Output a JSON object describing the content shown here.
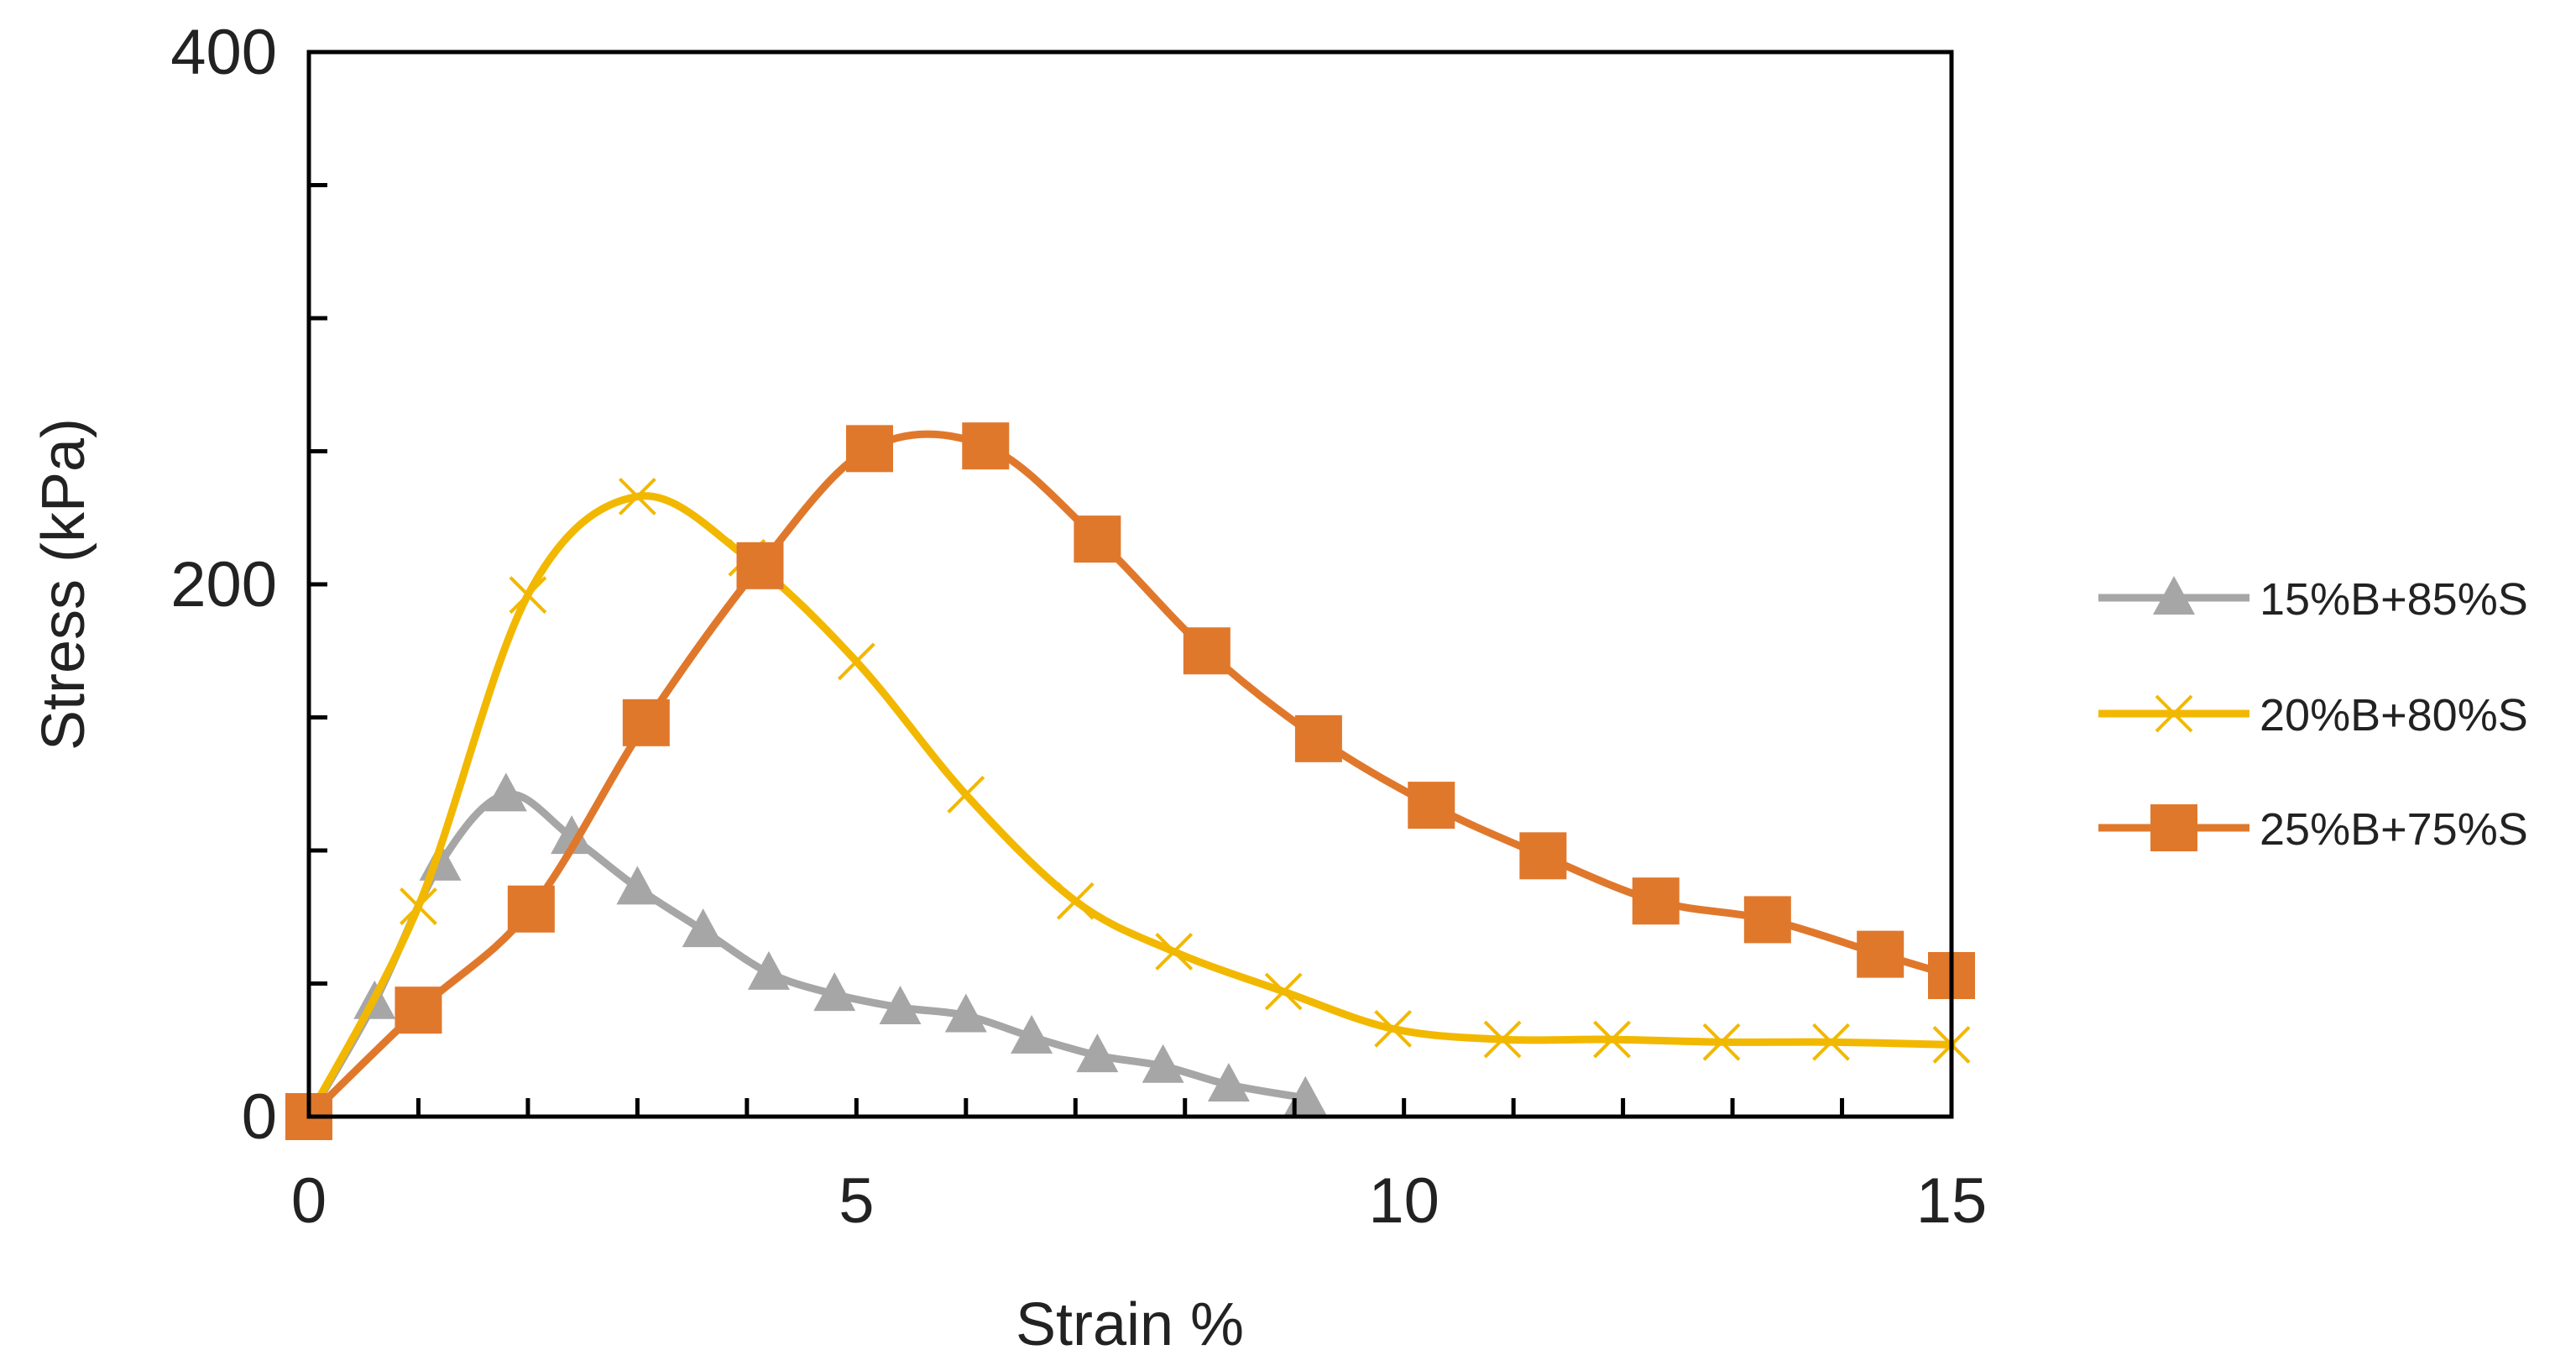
{
  "chart_data": {
    "type": "line",
    "title": "",
    "xlabel": "Strain %",
    "ylabel": "Stress  (kPa)",
    "xlim": [
      0,
      15
    ],
    "ylim": [
      0,
      400
    ],
    "xticks": [
      0,
      5,
      10,
      15
    ],
    "xtick_labels": [
      "0",
      "5",
      "10",
      "15"
    ],
    "yticks": [
      0,
      200,
      400
    ],
    "ytick_labels": [
      "0",
      "200",
      "400"
    ],
    "y_minor_step": 50,
    "x_minor_step": 1,
    "grid": false,
    "legend_position": "right",
    "series": [
      {
        "name": "15%B+85%S",
        "color": "#a6a6a6",
        "marker": "triangle",
        "x": [
          0,
          0.6,
          1.2,
          1.8,
          2.4,
          3.0,
          3.6,
          4.2,
          4.8,
          5.4,
          6.0,
          6.6,
          7.2,
          7.8,
          8.4,
          9.1
        ],
        "y": [
          0,
          43,
          95,
          121,
          105,
          86,
          70,
          54,
          46,
          41,
          38,
          30,
          23,
          19,
          12,
          7
        ]
      },
      {
        "name": "20%B+80%S",
        "color": "#f2b800",
        "marker": "x",
        "x": [
          0,
          1.0,
          2.0,
          3.0,
          4.0,
          5.0,
          6.0,
          7.0,
          7.9,
          8.9,
          9.9,
          10.9,
          11.9,
          12.9,
          13.9,
          15.0
        ],
        "y": [
          0,
          79,
          196,
          233,
          210,
          171,
          121,
          81,
          62,
          47,
          33,
          29,
          29,
          28,
          28,
          27
        ]
      },
      {
        "name": "25%B+75%S",
        "color": "#e0782c",
        "marker": "square",
        "x": [
          0,
          1.0,
          2.03,
          3.08,
          4.12,
          5.12,
          6.18,
          7.2,
          8.2,
          9.22,
          10.25,
          11.27,
          12.3,
          13.32,
          14.35,
          15.0
        ],
        "y": [
          0,
          40,
          78,
          148,
          207,
          251,
          252,
          217,
          175,
          142,
          117,
          98,
          81,
          74,
          61,
          53
        ]
      }
    ]
  }
}
